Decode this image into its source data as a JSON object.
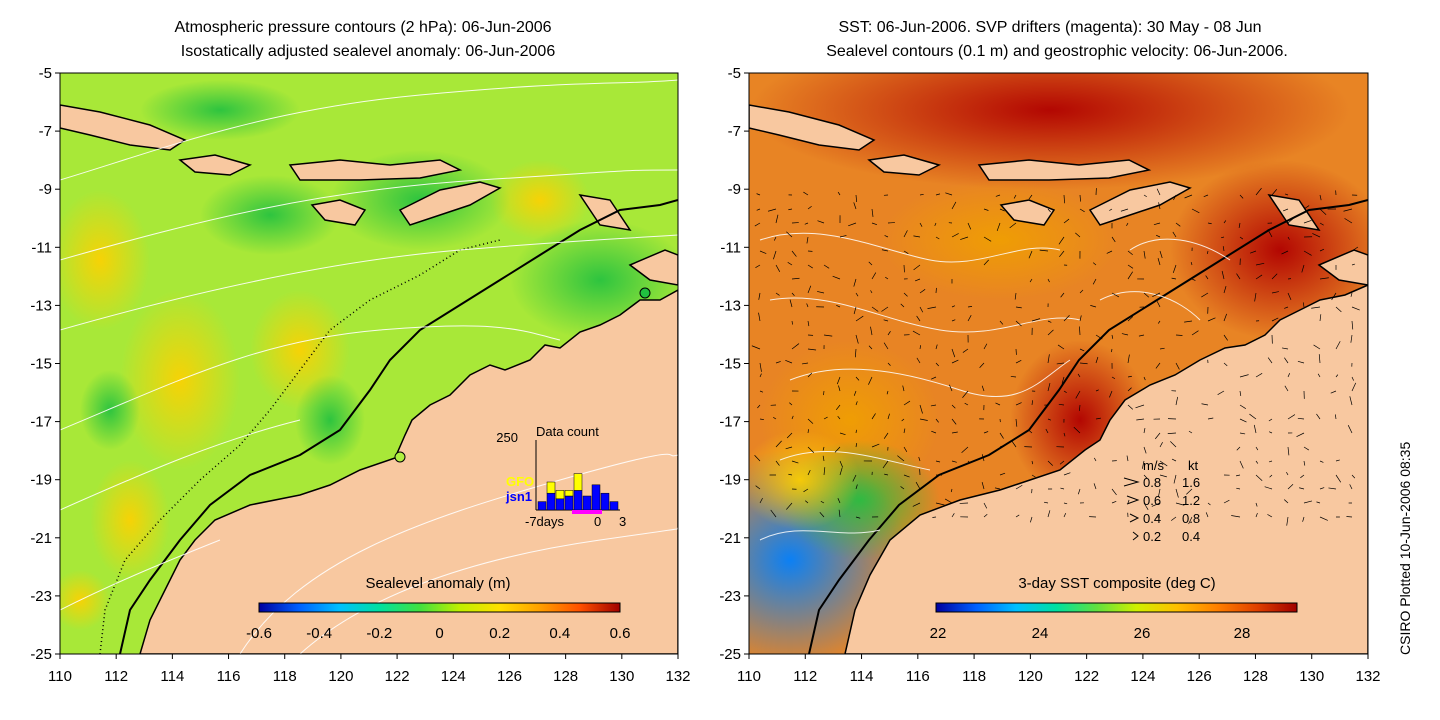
{
  "left_panel": {
    "title_line1": "Atmospheric pressure contours (2 hPa): 06-Jun-2006",
    "title_line2": "Isostatically adjusted sealevel anomaly: 06-Jun-2006",
    "colorbar_label": "Sealevel anomaly (m)",
    "colorbar_ticks": [
      "-0.6",
      "-0.4",
      "-0.2",
      "0",
      "0.2",
      "0.4",
      "0.6"
    ],
    "colorbar_colors": [
      "#0000a0",
      "#0060ff",
      "#00c0ff",
      "#00e0a0",
      "#40e040",
      "#c0f000",
      "#ffe000",
      "#ffa000",
      "#ff5000",
      "#a00000"
    ],
    "inset": {
      "title": "Data count",
      "ymax_label": "250",
      "series_label_1": "GFO",
      "series_label_2": "jsn1",
      "x_label_left": "-7days",
      "x_label_mid": "0",
      "x_label_right": "3",
      "series_colors": {
        "GFO": "#ffff00",
        "jsn1": "#0000ff"
      },
      "bars": [
        {
          "day": -7,
          "gfo": 0,
          "jsn1": 30
        },
        {
          "day": -6,
          "gfo": 40,
          "jsn1": 60
        },
        {
          "day": -5,
          "gfo": 30,
          "jsn1": 40
        },
        {
          "day": -4,
          "gfo": 20,
          "jsn1": 50
        },
        {
          "day": -3,
          "gfo": 60,
          "jsn1": 70
        },
        {
          "day": -2,
          "gfo": 0,
          "jsn1": 50
        },
        {
          "day": -1,
          "gfo": 0,
          "jsn1": 90
        },
        {
          "day": 0,
          "gfo": 0,
          "jsn1": 60
        },
        {
          "day": 1,
          "gfo": 0,
          "jsn1": 30
        }
      ]
    }
  },
  "right_panel": {
    "title_line1": "SST: 06-Jun-2006. SVP drifters (magenta): 30 May - 08 Jun",
    "title_line2": "Sealevel contours (0.1 m) and geostrophic velocity: 06-Jun-2006.",
    "colorbar_label": "3-day SST composite (deg C)",
    "colorbar_ticks": [
      "22",
      "24",
      "26",
      "28"
    ],
    "colorbar_colors": [
      "#0000a0",
      "#0060ff",
      "#00c0ff",
      "#00e0a0",
      "#60e040",
      "#d0f000",
      "#ffc000",
      "#ff8000",
      "#e04000",
      "#a00000"
    ],
    "velocity_legend": {
      "header_ms": "m/s",
      "header_kt": "kt",
      "rows": [
        {
          "ms": "0.8",
          "kt": "1.6"
        },
        {
          "ms": "0.6",
          "kt": "1.2"
        },
        {
          "ms": "0.4",
          "kt": "0.8"
        },
        {
          "ms": "0.2",
          "kt": "0.4"
        }
      ]
    }
  },
  "axes": {
    "y_ticks": [
      "-5",
      "-7",
      "-9",
      "-11",
      "-13",
      "-15",
      "-17",
      "-19",
      "-21",
      "-23",
      "-25"
    ],
    "x_ticks": [
      "110",
      "112",
      "114",
      "116",
      "118",
      "120",
      "122",
      "124",
      "126",
      "128",
      "130",
      "132"
    ]
  },
  "credit": "CSIRO Plotted 10-Jun-2006 08:35",
  "colors": {
    "land": "#f8c8a0",
    "sla_base": "#90e040",
    "sst_base": "#e08020"
  }
}
